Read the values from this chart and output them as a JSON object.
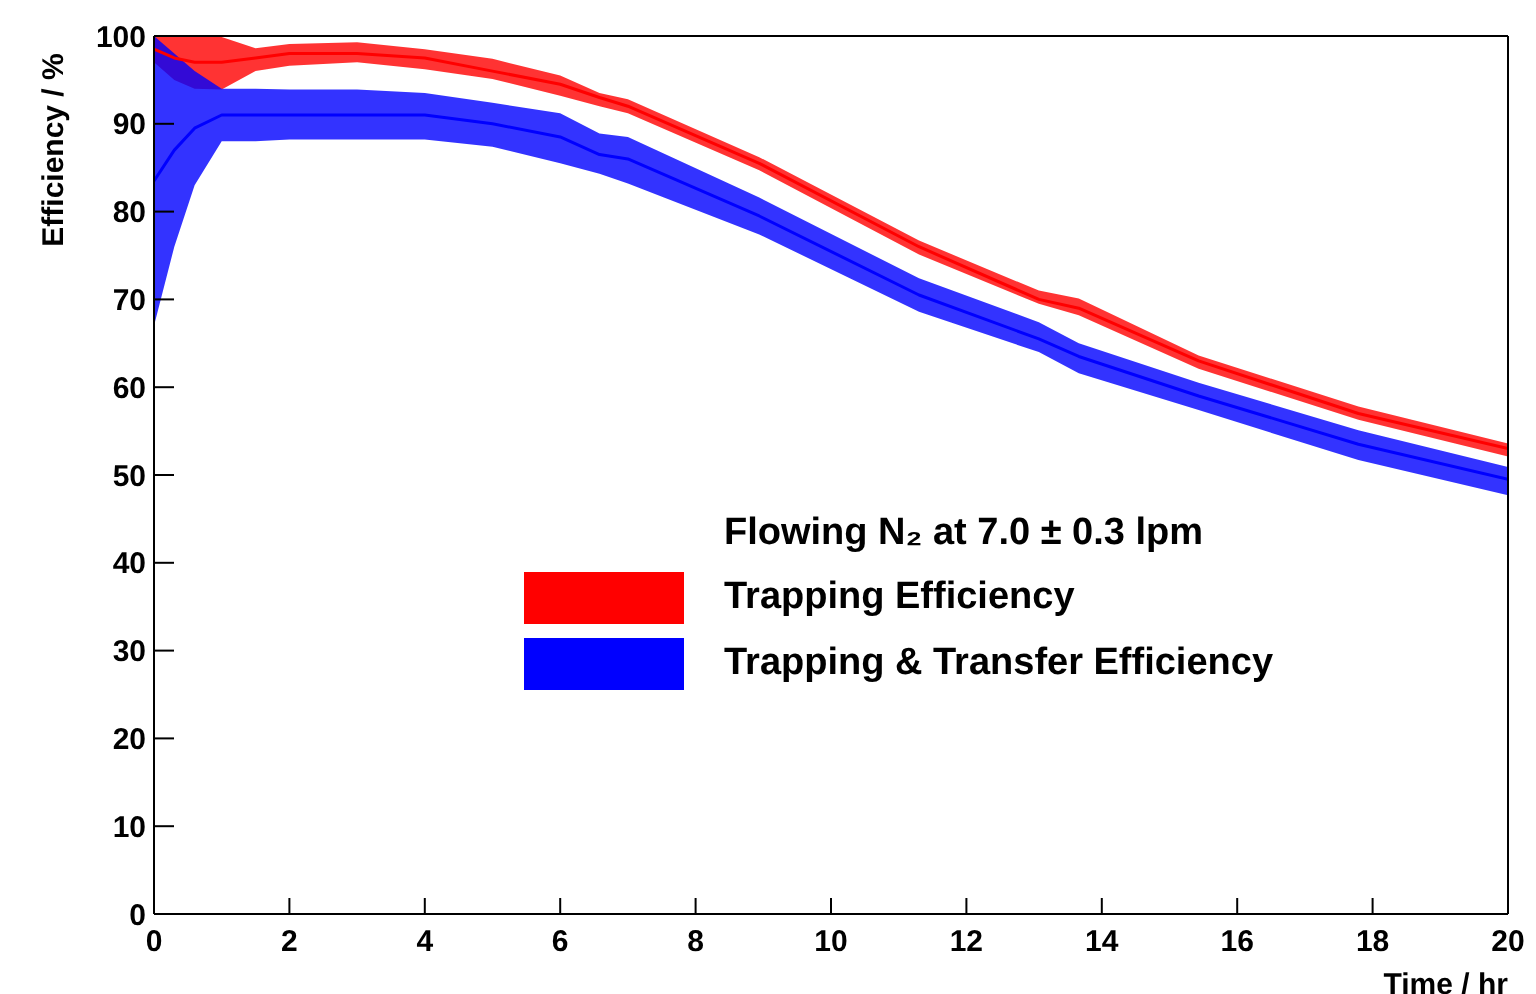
{
  "chart_data": {
    "type": "line",
    "xlabel": "Time / hr",
    "ylabel": "Efficiency / %",
    "legend_title": "Flowing N₂ at 7.0 ± 0.3 lpm",
    "x": [
      0,
      0.3,
      0.6,
      1,
      1.5,
      2,
      3,
      4,
      5,
      6,
      6.58,
      7,
      8.94,
      11.3,
      13.07,
      13.66,
      15.43,
      17.79,
      20
    ],
    "series": [
      {
        "name": "Trapping Efficiency",
        "color": "#ff0000",
        "values": [
          98.5,
          97.5,
          97,
          97,
          97.5,
          98,
          98,
          97.5,
          96,
          94.5,
          93,
          92,
          85.5,
          76,
          70,
          69,
          63,
          57,
          53
        ],
        "lower": [
          97,
          95,
          94,
          93.9,
          96,
          96.6,
          97,
          96.2,
          95.1,
          93.2,
          92,
          91.2,
          84.7,
          75.1,
          69.5,
          68.2,
          62.1,
          56.3,
          52.1
        ],
        "upper": [
          100,
          100,
          100,
          99.9,
          98.6,
          99.1,
          99.3,
          98.5,
          97.4,
          95.5,
          93.5,
          92.8,
          86.2,
          76.7,
          71,
          70.1,
          63.6,
          57.8,
          53.6
        ]
      },
      {
        "name": "Trapping & Transfer Efficiency",
        "color": "#0000ff",
        "values": [
          83.5,
          87,
          89.5,
          91,
          91,
          91,
          91,
          91,
          90,
          88.5,
          86.5,
          86,
          79.5,
          70.5,
          65.5,
          63.5,
          59,
          53.5,
          49.5
        ],
        "lower": [
          67,
          76,
          83,
          88,
          88,
          88.2,
          88.2,
          88.2,
          87.4,
          85.5,
          84.3,
          83.2,
          77.4,
          68.6,
          64,
          61.6,
          57.4,
          51.7,
          47.7
        ],
        "upper": [
          100,
          98,
          96,
          94,
          94,
          93.9,
          93.9,
          93.5,
          92.4,
          91.2,
          88.9,
          88.5,
          81.6,
          72.4,
          67.4,
          65,
          60.5,
          55.1,
          50.9
        ]
      }
    ],
    "xlim": [
      0,
      20
    ],
    "xticks": [
      0,
      2,
      4,
      6,
      8,
      10,
      12,
      14,
      16,
      18,
      20
    ],
    "ylim": [
      0,
      100
    ],
    "yticks": [
      0,
      10,
      20,
      30,
      40,
      50,
      60,
      70,
      80,
      90,
      100
    ],
    "grid": false,
    "legend": "right"
  }
}
